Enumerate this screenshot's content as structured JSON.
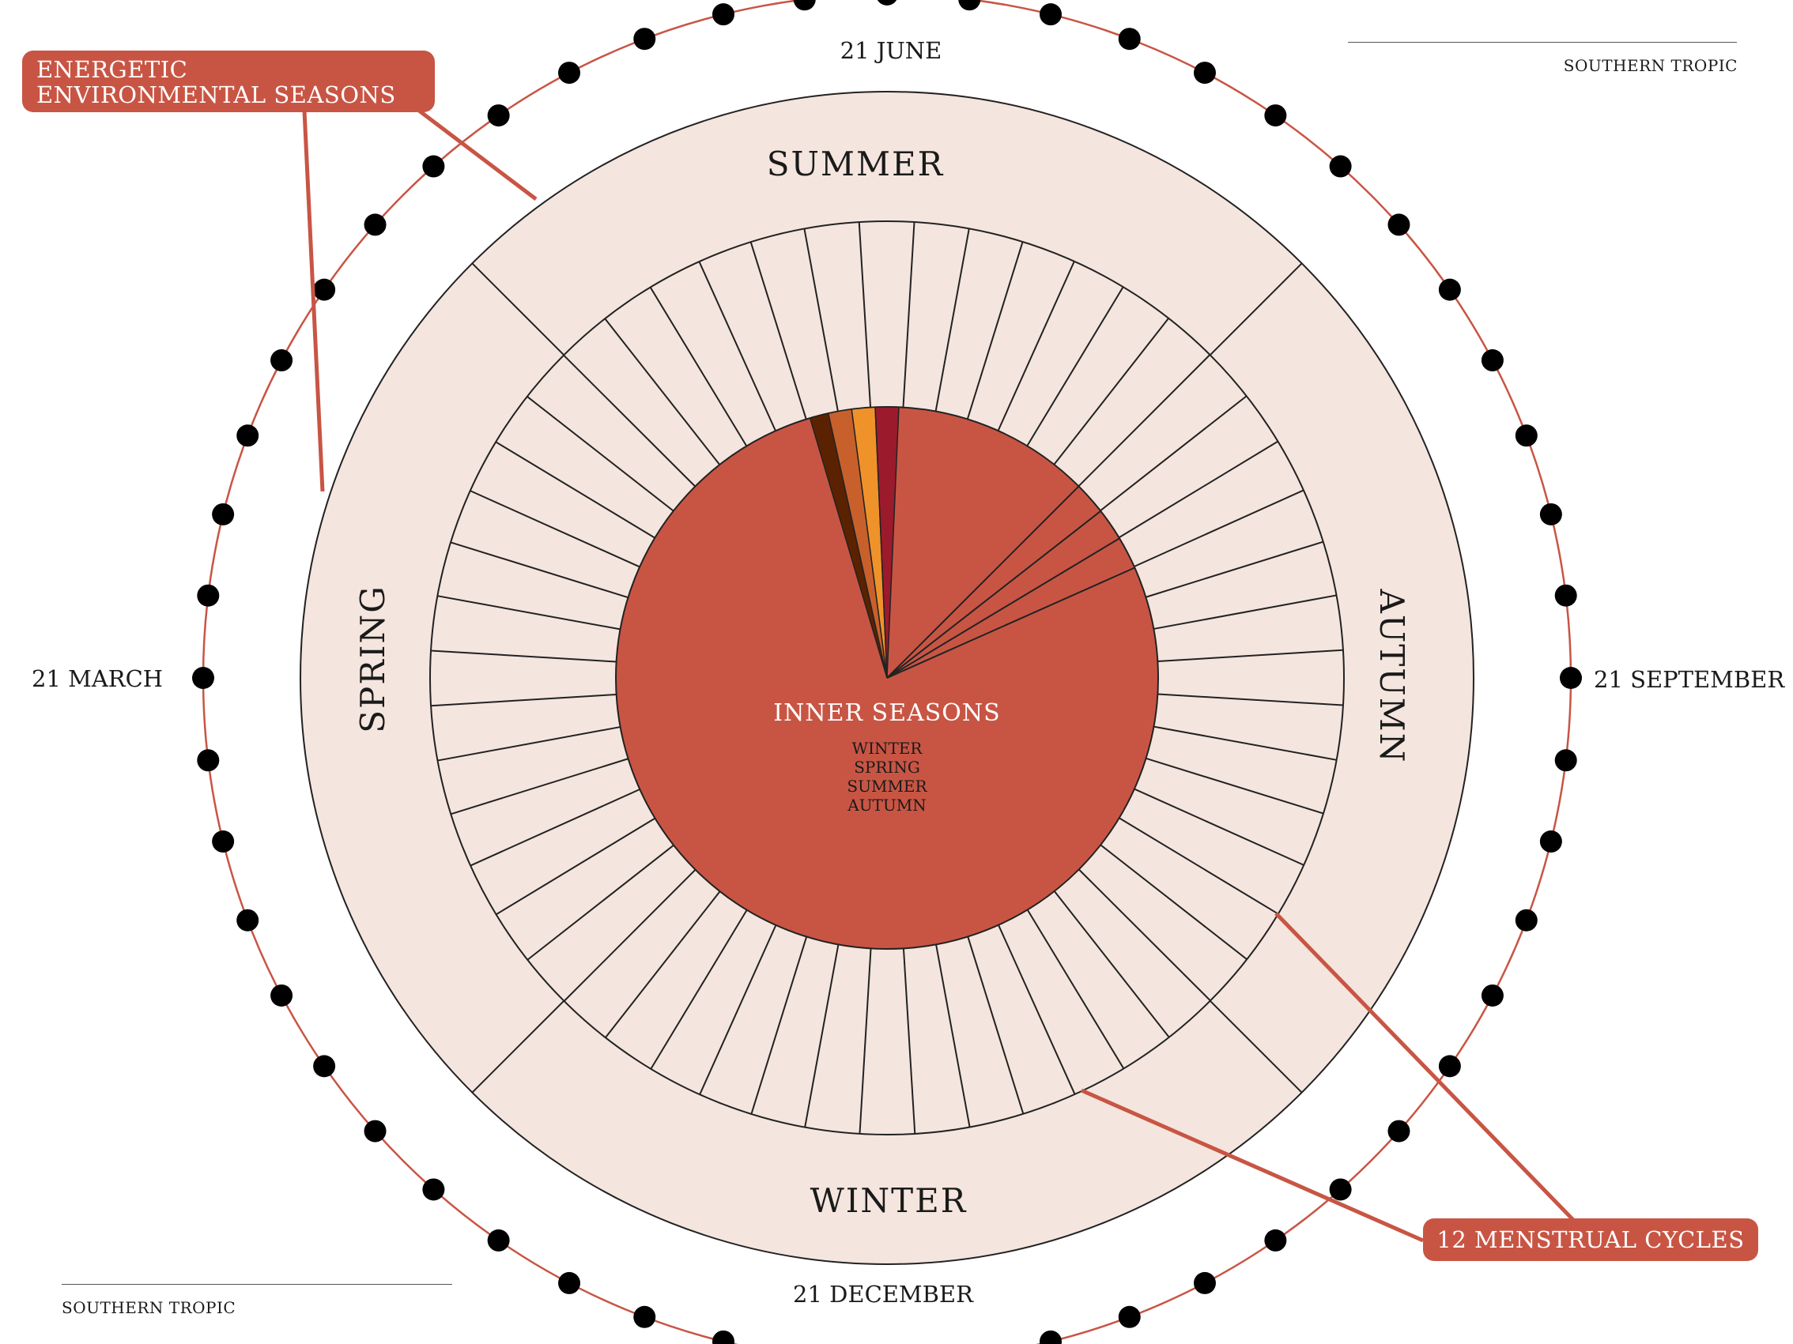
{
  "dates": {
    "top": "21 JUNE",
    "right": "21 SEPTEMBER",
    "bottom": "21 DECEMBER",
    "left": "21 MARCH"
  },
  "environmental_seasons": {
    "top": "SUMMER",
    "right": "AUTUMN",
    "bottom": "WINTER",
    "left": "SPRING"
  },
  "center": {
    "title": "INNER SEASONS",
    "seasons": [
      "WINTER",
      "SPRING",
      "SUMMER",
      "AUTUMN"
    ]
  },
  "callouts": {
    "energetic": "ENERGETIC ENVIRONMENTAL SEASONS",
    "menstrual": "12 MENSTRUAL CYCLES"
  },
  "corner_labels": {
    "top_right": "SOUTHERN TROPIC",
    "bottom_left": "SOUTHERN TROPIC"
  },
  "counts": {
    "day_segments": 52,
    "outer_dots": 52
  },
  "colors": {
    "ring_fill": "#f4e5de",
    "inner_disc": "#c85544",
    "callout": "#c85544",
    "orbit_line": "#c85544",
    "dot": "#000000",
    "wedge_winter": "#5a2200",
    "wedge_spring": "#c8602c",
    "wedge_summer": "#f0922a",
    "wedge_autumn": "#9b1a2c"
  }
}
